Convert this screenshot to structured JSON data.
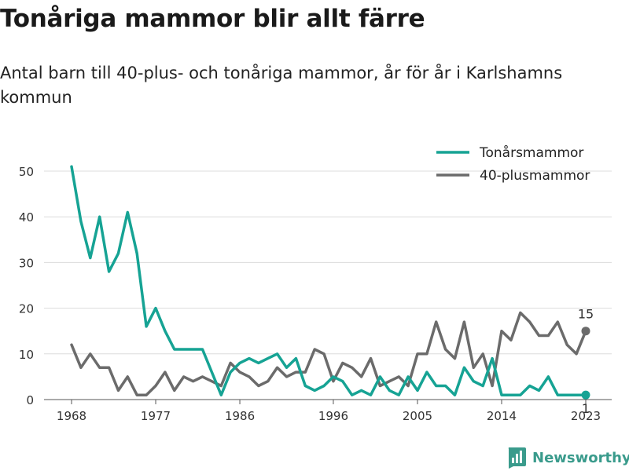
{
  "title": "Tonåriga mammor blir allt färre",
  "subtitle": "Antal barn till 40-plus- och tonåriga mammor, år för år i Karlshamns kommun",
  "brand": {
    "name": "Newsworthy",
    "icon": "bar-chart-logo-icon",
    "color": "#3a9b8c"
  },
  "chart_data": {
    "type": "line",
    "x": [
      1968,
      1969,
      1970,
      1971,
      1972,
      1973,
      1974,
      1975,
      1976,
      1977,
      1978,
      1979,
      1980,
      1981,
      1982,
      1983,
      1984,
      1985,
      1986,
      1987,
      1988,
      1989,
      1990,
      1991,
      1992,
      1993,
      1994,
      1995,
      1996,
      1997,
      1998,
      1999,
      2000,
      2001,
      2002,
      2003,
      2004,
      2005,
      2006,
      2007,
      2008,
      2009,
      2010,
      2011,
      2012,
      2013,
      2014,
      2015,
      2016,
      2017,
      2018,
      2019,
      2020,
      2021,
      2022,
      2023
    ],
    "series": [
      {
        "name": "Tonårsmammor",
        "color": "#16a394",
        "values": [
          51,
          39,
          31,
          40,
          28,
          32,
          41,
          32,
          16,
          20,
          15,
          11,
          11,
          11,
          11,
          6,
          1,
          6,
          8,
          9,
          8,
          9,
          10,
          7,
          9,
          3,
          2,
          3,
          5,
          4,
          1,
          2,
          1,
          5,
          2,
          1,
          5,
          2,
          6,
          3,
          3,
          1,
          7,
          4,
          3,
          9,
          1,
          1,
          1,
          3,
          2,
          5,
          1,
          1,
          1,
          1
        ]
      },
      {
        "name": "40-plusmammor",
        "color": "#6b6b6b",
        "values": [
          12,
          7,
          10,
          7,
          7,
          2,
          5,
          1,
          1,
          3,
          6,
          2,
          5,
          4,
          5,
          4,
          3,
          8,
          6,
          5,
          3,
          4,
          7,
          5,
          6,
          6,
          11,
          10,
          4,
          8,
          7,
          5,
          9,
          3,
          4,
          5,
          3,
          10,
          10,
          17,
          11,
          9,
          17,
          7,
          10,
          3,
          15,
          13,
          19,
          17,
          14,
          14,
          17,
          12,
          10,
          15
        ]
      }
    ],
    "end_labels": [
      "1",
      "15"
    ],
    "xticks": [
      1968,
      1977,
      1986,
      1996,
      2005,
      2014,
      2023
    ],
    "yticks": [
      0,
      10,
      20,
      30,
      40,
      50
    ],
    "xlim": [
      1968,
      2023
    ],
    "ylim": [
      0,
      52
    ],
    "grid": "horizontal",
    "legend_position": "top-right",
    "xlabel": "",
    "ylabel": ""
  }
}
